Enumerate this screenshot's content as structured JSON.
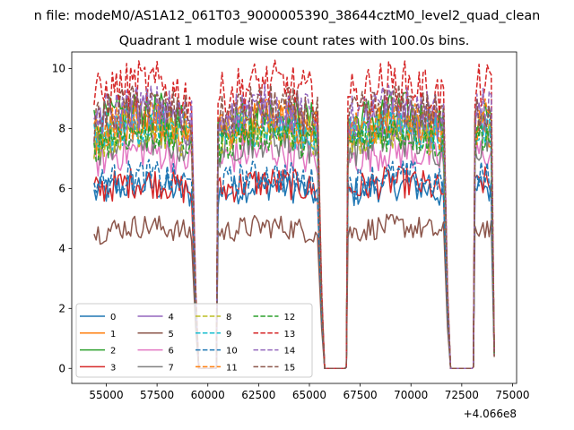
{
  "chart_data": {
    "type": "line",
    "suptitle": "n file: modeM0/AS1A12_061T03_9000005390_38644cztM0_level2_quad_clean",
    "title": "Quadrant 1 module wise count rates with 100.0s bins.",
    "xlabel": "",
    "ylabel": "",
    "x_offset_text": "+4.066e8",
    "xlim": [
      53300,
      75200
    ],
    "ylim": [
      -0.5,
      10.55
    ],
    "x_ticks": [
      55000,
      57500,
      60000,
      62500,
      65000,
      67500,
      70000,
      72500,
      75000
    ],
    "x_tick_labels": [
      "55000",
      "57500",
      "60000",
      "62500",
      "65000",
      "67500",
      "70000",
      "72500",
      "75000"
    ],
    "y_ticks": [
      0,
      2,
      4,
      6,
      8,
      10
    ],
    "y_tick_labels": [
      "0",
      "2",
      "4",
      "6",
      "8",
      "10"
    ],
    "time_segments": [
      {
        "start": 54400,
        "end": 59200,
        "edge_end": 59800
      },
      {
        "start": 60500,
        "end": 65400,
        "edge_start": 60500,
        "edge_end": 65500
      },
      {
        "start": 66900,
        "end": 71600,
        "edge_start": 66800,
        "edge_end": 71700
      },
      {
        "start": 73100,
        "end": 74100,
        "edge_start": 73100,
        "edge_end": 74100
      }
    ],
    "gaps": [
      [
        59900,
        60400
      ],
      [
        65600,
        66800
      ],
      [
        71800,
        73000
      ]
    ],
    "series": [
      {
        "name": "0",
        "level": 5.8,
        "color": "#1f77b4",
        "dash": "solid"
      },
      {
        "name": "1",
        "level": 7.8,
        "color": "#ff7f0e",
        "dash": "solid"
      },
      {
        "name": "2",
        "level": 8.1,
        "color": "#2ca02c",
        "dash": "solid"
      },
      {
        "name": "3",
        "level": 5.9,
        "color": "#d62728",
        "dash": "solid"
      },
      {
        "name": "4",
        "level": 8.0,
        "color": "#9467bd",
        "dash": "solid"
      },
      {
        "name": "5",
        "level": 4.5,
        "color": "#8c564b",
        "dash": "solid"
      },
      {
        "name": "6",
        "level": 6.9,
        "color": "#e377c2",
        "dash": "solid"
      },
      {
        "name": "7",
        "level": 7.3,
        "color": "#7f7f7f",
        "dash": "solid"
      },
      {
        "name": "8",
        "level": 7.6,
        "color": "#bcbd22",
        "dash": "dashed"
      },
      {
        "name": "9",
        "level": 7.7,
        "color": "#17becf",
        "dash": "dashed"
      },
      {
        "name": "10",
        "level": 6.1,
        "color": "#1f77b4",
        "dash": "dashed"
      },
      {
        "name": "11",
        "level": 7.9,
        "color": "#ff7f0e",
        "dash": "dashed"
      },
      {
        "name": "12",
        "level": 7.5,
        "color": "#2ca02c",
        "dash": "dashed"
      },
      {
        "name": "13",
        "level": 9.0,
        "color": "#d62728",
        "dash": "dashed"
      },
      {
        "name": "14",
        "level": 8.3,
        "color": "#9467bd",
        "dash": "dashed"
      },
      {
        "name": "15",
        "level": 8.3,
        "color": "#8c564b",
        "dash": "dashed"
      }
    ],
    "legend": {
      "location": "lower-left",
      "columns": 4
    }
  }
}
